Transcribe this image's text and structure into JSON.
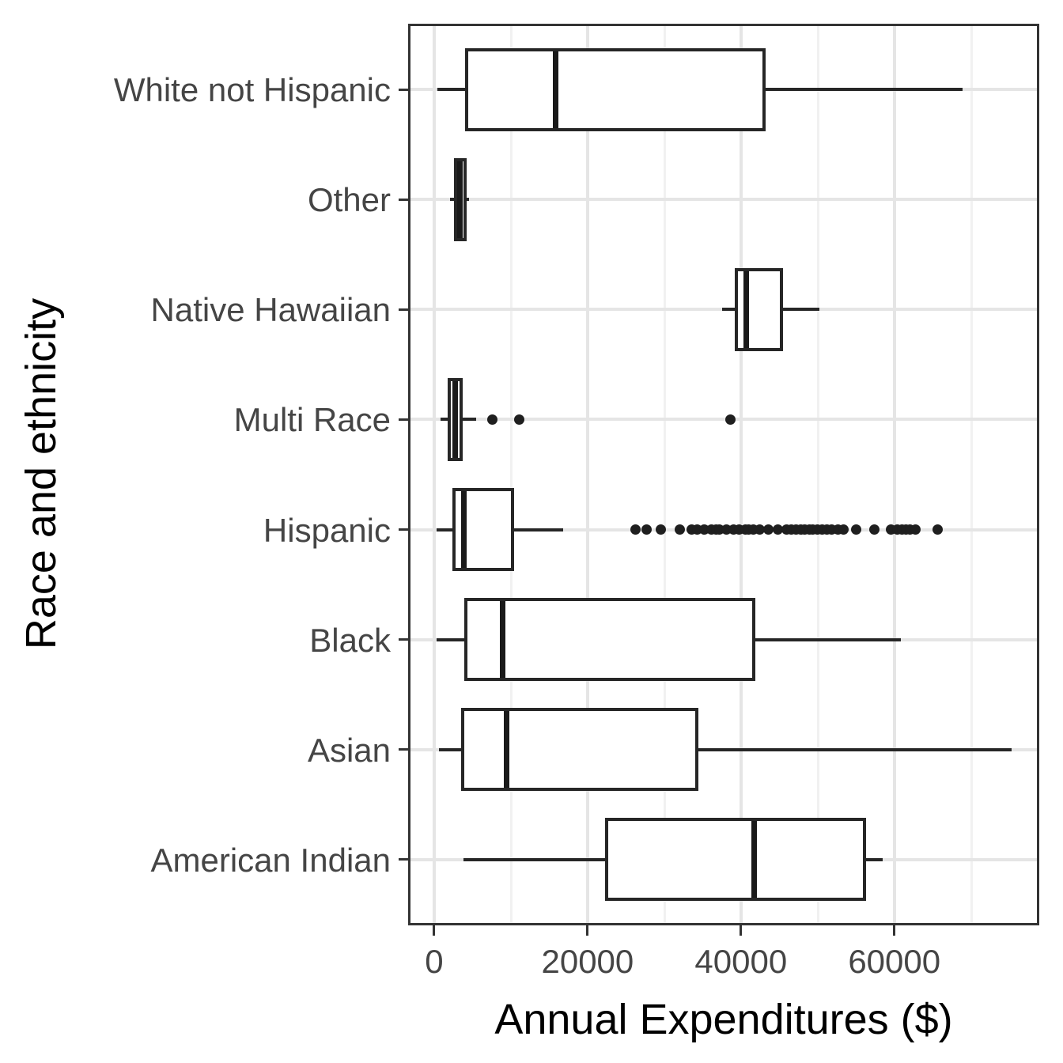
{
  "chart_data": {
    "type": "boxplot",
    "orientation": "horizontal",
    "title": "",
    "xlabel": "Annual Expenditures ($)",
    "ylabel": "Race and ethnicity",
    "xlim": [
      -3400,
      78900
    ],
    "x_major_ticks": [
      0,
      20000,
      40000,
      60000
    ],
    "x_tick_labels": [
      "0",
      "20000",
      "40000",
      "60000"
    ],
    "x_minor_gridlines": [
      10000,
      30000,
      50000,
      70000
    ],
    "grid": true,
    "legend": "none",
    "categories_top_to_bottom": [
      "White not Hispanic",
      "Other",
      "Native Hawaiian",
      "Multi Race",
      "Hispanic",
      "Black",
      "Asian",
      "American Indian"
    ],
    "boxes": [
      {
        "category": "White not Hispanic",
        "whisker_min": 400,
        "q1": 4000,
        "median": 15800,
        "q3": 43200,
        "whisker_max": 68900,
        "outliers": []
      },
      {
        "category": "Other",
        "whisker_min": 2100,
        "q1": 2600,
        "median": 3400,
        "q3": 4200,
        "whisker_max": 4500,
        "outliers": []
      },
      {
        "category": "Native Hawaiian",
        "whisker_min": 37500,
        "q1": 39200,
        "median": 40700,
        "q3": 45500,
        "whisker_max": 50200,
        "outliers": []
      },
      {
        "category": "Multi Race",
        "whisker_min": 800,
        "q1": 1800,
        "median": 2700,
        "q3": 3700,
        "whisker_max": 5500,
        "outliers": [
          7600,
          11100,
          38600
        ]
      },
      {
        "category": "Hispanic",
        "whisker_min": 300,
        "q1": 2400,
        "median": 3900,
        "q3": 10400,
        "whisker_max": 16800,
        "outliers": [
          26200,
          27700,
          29500,
          32000,
          33600,
          34300,
          35200,
          36200,
          36800,
          37200,
          38100,
          39000,
          39800,
          40600,
          41000,
          41600,
          42400,
          43600,
          44800,
          46000,
          46600,
          47200,
          47800,
          48300,
          48900,
          49400,
          50000,
          50600,
          51200,
          51800,
          52700,
          53400,
          55000,
          57400,
          59600,
          60400,
          61000,
          61500,
          62000,
          62800,
          65600
        ]
      },
      {
        "category": "Black",
        "whisker_min": 300,
        "q1": 3900,
        "median": 8900,
        "q3": 41900,
        "whisker_max": 60900,
        "outliers": []
      },
      {
        "category": "Asian",
        "whisker_min": 600,
        "q1": 3500,
        "median": 9400,
        "q3": 34500,
        "whisker_max": 75300,
        "outliers": []
      },
      {
        "category": "American Indian",
        "whisker_min": 3800,
        "q1": 22300,
        "median": 41700,
        "q3": 56300,
        "whisker_max": 58500,
        "outliers": []
      }
    ]
  }
}
